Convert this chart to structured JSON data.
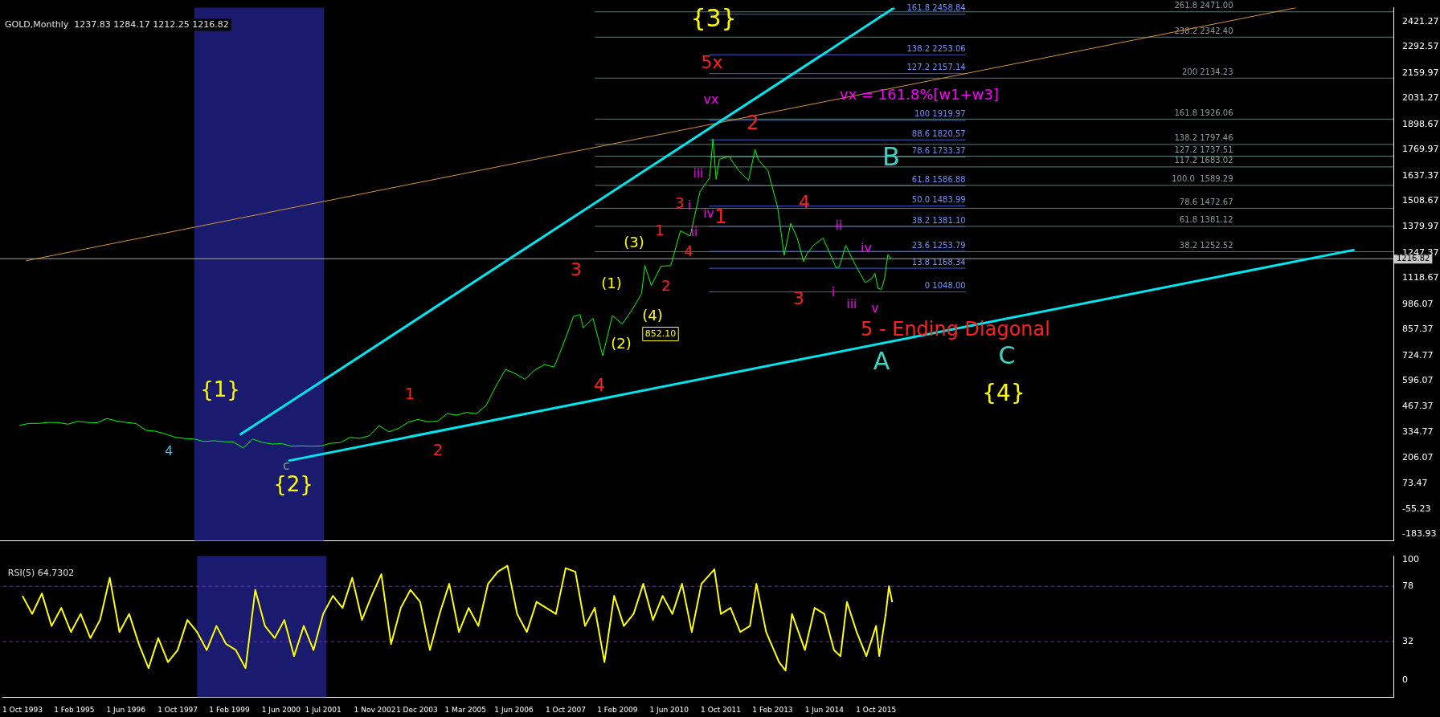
{
  "chart_data": [
    {
      "type": "line",
      "title": "GOLD,Monthly  1237.83 1284.17 1212.25 1216.82",
      "xlim": [
        "1993-04",
        "2029-02"
      ],
      "ylim": [
        -216,
        2492
      ],
      "tick_labels": "y",
      "grid": false,
      "legend": false,
      "yticks": [
        2421.27,
        2292.57,
        2159.97,
        2031.27,
        1898.67,
        1769.97,
        1637.37,
        1508.67,
        1379.97,
        1247.37,
        1118.67,
        986.07,
        857.37,
        724.77,
        596.07,
        467.37,
        334.77,
        206.07,
        73.47,
        -55.23,
        -183.93
      ],
      "series": [
        {
          "color": "#00ff00",
          "x": [
            "1993-10",
            "1994-01",
            "1994-04",
            "1994-07",
            "1994-10",
            "1995-01",
            "1995-04",
            "1995-07",
            "1995-10",
            "1996-01",
            "1996-04",
            "1996-07",
            "1996-10",
            "1997-01",
            "1997-04",
            "1997-07",
            "1997-10",
            "1998-01",
            "1998-04",
            "1998-07",
            "1998-10",
            "1999-01",
            "1999-04",
            "1999-07",
            "1999-10",
            "2000-01",
            "2000-04",
            "2000-07",
            "2000-10",
            "2001-01",
            "2001-04",
            "2001-07",
            "2001-10",
            "2002-01",
            "2002-04",
            "2002-07",
            "2002-10",
            "2003-01",
            "2003-04",
            "2003-07",
            "2003-10",
            "2004-01",
            "2004-04",
            "2004-07",
            "2004-10",
            "2005-01",
            "2005-04",
            "2005-07",
            "2005-10",
            "2006-01",
            "2006-04",
            "2006-07",
            "2006-10",
            "2007-01",
            "2007-04",
            "2007-07",
            "2007-10",
            "2008-01",
            "2008-03",
            "2008-04",
            "2008-07",
            "2008-10",
            "2009-01",
            "2009-04",
            "2009-07",
            "2009-10",
            "2009-11",
            "2010-01",
            "2010-04",
            "2010-07",
            "2010-10",
            "2011-01",
            "2011-04",
            "2011-07",
            "2011-08",
            "2011-09",
            "2011-10",
            "2012-01",
            "2012-02",
            "2012-04",
            "2012-07",
            "2012-09",
            "2012-10",
            "2013-01",
            "2013-04",
            "2013-06",
            "2013-08",
            "2013-10",
            "2013-12",
            "2014-01",
            "2014-03",
            "2014-06",
            "2014-09",
            "2014-10",
            "2014-11",
            "2015-01",
            "2015-04",
            "2015-07",
            "2015-09",
            "2015-10",
            "2015-11",
            "2015-12",
            "2016-01",
            "2016-02",
            "2016-03"
          ],
          "values": [
            370,
            380,
            380,
            385,
            384,
            376,
            390,
            385,
            383,
            405,
            392,
            385,
            379,
            345,
            340,
            326,
            310,
            303,
            300,
            288,
            292,
            287,
            286,
            255,
            300,
            283,
            275,
            277,
            264,
            266,
            264,
            265,
            279,
            282,
            309,
            304,
            317,
            368,
            337,
            354,
            386,
            400,
            388,
            391,
            429,
            422,
            436,
            429,
            470,
            568,
            654,
            633,
            604,
            650,
            679,
            666,
            789,
            923,
            933,
            865,
            914,
            724,
            928,
            884,
            955,
            1040,
            1182,
            1081,
            1179,
            1181,
            1359,
            1332,
            1556,
            1628,
            1826,
            1620,
            1722,
            1737,
            1711,
            1664,
            1614,
            1772,
            1719,
            1664,
            1476,
            1234,
            1396,
            1323,
            1202,
            1240,
            1284,
            1322,
            1210,
            1171,
            1175,
            1284,
            1184,
            1095,
            1115,
            1142,
            1065,
            1061,
            1118,
            1238,
            1217
          ]
        },
        {
          "type": "line",
          "color": "#00e5ee",
          "x": [
            "1999-06",
            "2016-04"
          ],
          "values": [
            322,
            2492
          ]
        },
        {
          "type": "line",
          "color": "#00e5ee",
          "x": [
            "2000-09",
            "2028-02"
          ],
          "values": [
            190,
            1262
          ]
        },
        {
          "type": "line",
          "color": "#d2943c",
          "x": [
            "1993-12",
            "2026-08"
          ],
          "values": [
            1206,
            2492
          ]
        }
      ],
      "bands": [
        {
          "axis": "x",
          "from": "1998-04",
          "to": "2001-08",
          "color": "#1a1a6e"
        }
      ],
      "ref_lines": [
        {
          "axis": "y",
          "value": 2458.84,
          "label": "161.8 2458.84",
          "color": "#3f5fdf"
        },
        {
          "axis": "y",
          "value": 2253.06,
          "label": "138.2 2253.06",
          "color": "#3f5fdf"
        },
        {
          "axis": "y",
          "value": 2157.14,
          "label": "127.2 2157.14",
          "color": "#3f5fdf"
        },
        {
          "axis": "y",
          "value": 1919.97,
          "label": "100 1919.97",
          "color": "#3f5fdf"
        },
        {
          "axis": "y",
          "value": 1820.57,
          "label": "88.6 1820.57",
          "color": "#3f5fdf"
        },
        {
          "axis": "y",
          "value": 1733.37,
          "label": "78.6 1733.37",
          "color": "#3f5fdf"
        },
        {
          "axis": "y",
          "value": 1586.88,
          "label": "61.8 1586.88",
          "color": "#3f5fdf"
        },
        {
          "axis": "y",
          "value": 1483.99,
          "label": "50.0 1483.99",
          "color": "#3f5fdf"
        },
        {
          "axis": "y",
          "value": 1381.1,
          "label": "38.2 1381.10",
          "color": "#3f5fdf"
        },
        {
          "axis": "y",
          "value": 1253.79,
          "label": "23.6 1253.79",
          "color": "#3f5fdf"
        },
        {
          "axis": "y",
          "value": 1168.34,
          "label": "13.8 1168.34",
          "color": "#3f5fdf"
        },
        {
          "axis": "y",
          "value": 1048.0,
          "label": "0 1048.00",
          "color": "#3f5fdf"
        },
        {
          "axis": "y",
          "value": 2471.0,
          "label": "261.8 2471.00",
          "color": "#5a7a7a"
        },
        {
          "axis": "y",
          "value": 2342.4,
          "label": "238.2 2342.40",
          "color": "#5a7a7a"
        },
        {
          "axis": "y",
          "value": 2134.23,
          "label": "200 2134.23",
          "color": "#5a7a7a"
        },
        {
          "axis": "y",
          "value": 1926.06,
          "label": "161.8 1926.06",
          "color": "#5a7a7a"
        },
        {
          "axis": "y",
          "value": 1797.46,
          "label": "138.2 1797.46",
          "color": "#5a7a7a"
        },
        {
          "axis": "y",
          "value": 1737.51,
          "label": "127.2 1737.51",
          "color": "#5a7a7a"
        },
        {
          "axis": "y",
          "value": 1683.02,
          "label": "117.2 1683.02",
          "color": "#5a7a7a"
        },
        {
          "axis": "y",
          "value": 1589.29,
          "label": "100.0  1589.29",
          "color": "#5a7a7a"
        },
        {
          "axis": "y",
          "value": 1472.67,
          "label": "78.6 1472.67",
          "color": "#5a7a7a"
        },
        {
          "axis": "y",
          "value": 1381.12,
          "label": "61.8 1381.12",
          "color": "#5a7a7a"
        },
        {
          "axis": "y",
          "value": 1252.52,
          "label": "38.2 1252.52",
          "color": "#5a7a7a"
        },
        {
          "axis": "y",
          "value": 1216.82,
          "label": "1216.82",
          "color": "#a9a9a9"
        }
      ],
      "annotations": [
        "{3}",
        "5x",
        "vx",
        "2",
        "vx = 161.8%[w1+w3]",
        "B",
        "iii",
        "3",
        "i",
        "iv",
        "1",
        "ii",
        "4",
        "ii",
        "1",
        "(3)",
        "4",
        "iv",
        "3",
        "(1)",
        "2",
        "i",
        "3",
        "iii",
        "v",
        "(4)",
        "852.10",
        "(2)",
        "4",
        "5 - Ending Diagonal",
        "A",
        "C",
        "{4}",
        "{1}",
        "1",
        "4",
        "2",
        "c",
        "{2}"
      ]
    },
    {
      "type": "line",
      "title": "RSI(5) 64.7302",
      "xlim": [
        "1993-04",
        "2029-02"
      ],
      "ylim": [
        -14,
        103
      ],
      "yticks": [
        100,
        78,
        32,
        0
      ],
      "grid": false,
      "legend": false,
      "xticks": [
        {
          "value": "1993-10",
          "label": "1 Oct 1993"
        },
        {
          "value": "1995-02",
          "label": "1 Feb 1995"
        },
        {
          "value": "1996-06",
          "label": "1 Jun 1996"
        },
        {
          "value": "1997-10",
          "label": "1 Oct 1997"
        },
        {
          "value": "1999-02",
          "label": "1 Feb 1999"
        },
        {
          "value": "2000-06",
          "label": "1 Jun 2000"
        },
        {
          "value": "2001-07",
          "label": "1 Jul 2001"
        },
        {
          "value": "2002-11",
          "label": "1 Nov 2002"
        },
        {
          "value": "2003-12",
          "label": "1 Dec 2003"
        },
        {
          "value": "2005-03",
          "label": "1 Mar 2005"
        },
        {
          "value": "2006-06",
          "label": "1 Jun 2006"
        },
        {
          "value": "2007-10",
          "label": "1 Oct 2007"
        },
        {
          "value": "2009-02",
          "label": "1 Feb 2009"
        },
        {
          "value": "2010-06",
          "label": "1 Jun 2010"
        },
        {
          "value": "2011-10",
          "label": "1 Oct 2011"
        },
        {
          "value": "2013-02",
          "label": "1 Feb 2013"
        },
        {
          "value": "2014-06",
          "label": "1 Jun 2014"
        },
        {
          "value": "2015-10",
          "label": "1 Oct 2015"
        }
      ],
      "series": [
        {
          "color": "#ffff00",
          "x": [
            "1993-10",
            "1994-01",
            "1994-04",
            "1994-07",
            "1994-10",
            "1995-01",
            "1995-04",
            "1995-07",
            "1995-10",
            "1996-01",
            "1996-04",
            "1996-07",
            "1996-10",
            "1997-01",
            "1997-04",
            "1997-07",
            "1997-10",
            "1998-01",
            "1998-04",
            "1998-07",
            "1998-10",
            "1999-01",
            "1999-04",
            "1999-07",
            "1999-10",
            "2000-01",
            "2000-04",
            "2000-07",
            "2000-10",
            "2001-01",
            "2001-04",
            "2001-07",
            "2001-10",
            "2002-01",
            "2002-04",
            "2002-07",
            "2002-10",
            "2003-01",
            "2003-04",
            "2003-07",
            "2003-10",
            "2004-01",
            "2004-04",
            "2004-07",
            "2004-10",
            "2005-01",
            "2005-04",
            "2005-07",
            "2005-10",
            "2006-01",
            "2006-04",
            "2006-07",
            "2006-10",
            "2007-01",
            "2007-04",
            "2007-07",
            "2007-10",
            "2008-01",
            "2008-04",
            "2008-07",
            "2008-10",
            "2009-01",
            "2009-04",
            "2009-07",
            "2009-10",
            "2010-01",
            "2010-04",
            "2010-07",
            "2010-10",
            "2011-01",
            "2011-04",
            "2011-08",
            "2011-10",
            "2012-01",
            "2012-04",
            "2012-07",
            "2012-09",
            "2012-12",
            "2013-04",
            "2013-06",
            "2013-08",
            "2013-12",
            "2014-03",
            "2014-06",
            "2014-09",
            "2014-11",
            "2015-01",
            "2015-04",
            "2015-07",
            "2015-10",
            "2015-11",
            "2016-01",
            "2016-02",
            "2016-03"
          ],
          "values": [
            70,
            55,
            72,
            45,
            60,
            40,
            55,
            35,
            50,
            85,
            40,
            55,
            30,
            10,
            35,
            15,
            25,
            50,
            40,
            25,
            45,
            30,
            25,
            10,
            75,
            45,
            35,
            50,
            20,
            45,
            25,
            55,
            70,
            60,
            85,
            50,
            70,
            88,
            30,
            60,
            75,
            65,
            25,
            55,
            80,
            40,
            60,
            45,
            80,
            90,
            95,
            55,
            40,
            65,
            60,
            55,
            93,
            90,
            45,
            60,
            15,
            70,
            45,
            55,
            80,
            50,
            70,
            55,
            80,
            40,
            80,
            92,
            55,
            60,
            40,
            45,
            80,
            40,
            15,
            8,
            55,
            25,
            60,
            55,
            25,
            20,
            65,
            40,
            20,
            45,
            20,
            55,
            78,
            64.7302
          ]
        }
      ],
      "bands": [
        {
          "axis": "x",
          "from": "1998-04",
          "to": "2001-08",
          "color": "#1a1a6e"
        }
      ],
      "ref_lines": [
        {
          "axis": "y",
          "value": 78,
          "color": "#7b2fbe",
          "line_style": "dashed"
        },
        {
          "axis": "y",
          "value": 32,
          "color": "#7b2fbe",
          "line_style": "dashed"
        }
      ]
    }
  ]
}
